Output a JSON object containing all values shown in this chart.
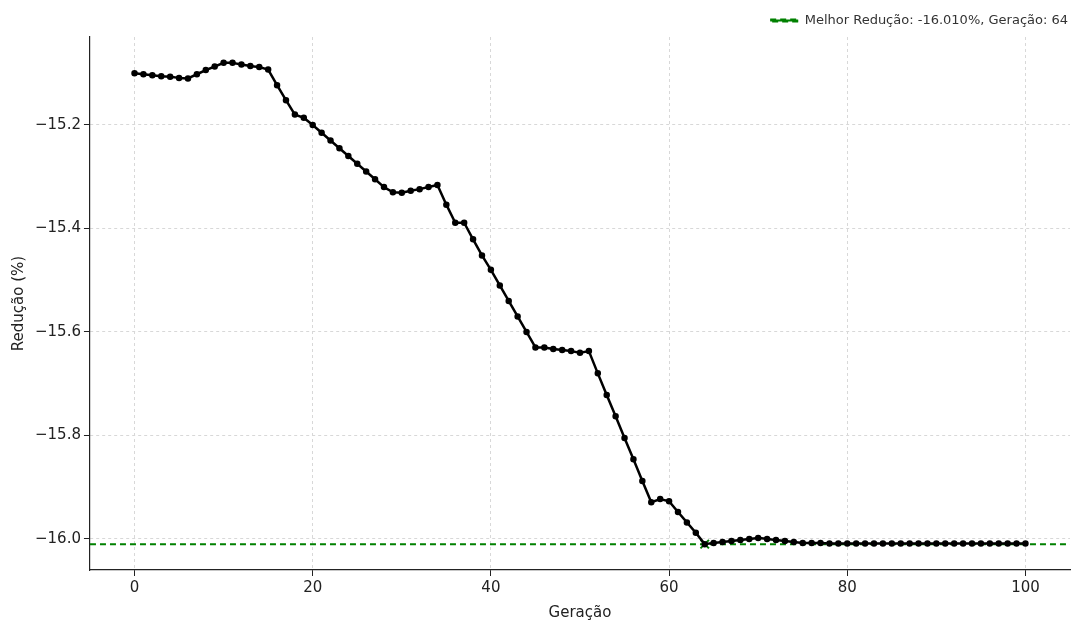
{
  "chart_data": {
    "type": "line",
    "xlabel": "Geração",
    "ylabel": "Redução (%)",
    "xlim": [
      -5,
      105
    ],
    "xticks": [
      0,
      20,
      40,
      60,
      80,
      100
    ],
    "ylim": [
      -16.06,
      -15.03
    ],
    "yticks": [
      {
        "value": -15.2,
        "label": "−15.2"
      },
      {
        "value": -15.4,
        "label": "−15.4"
      },
      {
        "value": -15.6,
        "label": "−15.6"
      },
      {
        "value": -15.8,
        "label": "−15.8"
      },
      {
        "value": -16.0,
        "label": "−16.0"
      }
    ],
    "grid": true,
    "legend": "top right",
    "marker": "circle",
    "line_style": "solid",
    "series": [
      {
        "color": "#000000",
        "x": [
          0,
          1,
          2,
          3,
          4,
          5,
          6,
          7,
          8,
          9,
          10,
          11,
          12,
          13,
          14,
          15,
          16,
          17,
          18,
          19,
          20,
          21,
          22,
          23,
          24,
          25,
          26,
          27,
          28,
          29,
          30,
          31,
          32,
          33,
          34,
          35,
          36,
          37,
          38,
          39,
          40,
          41,
          42,
          43,
          44,
          45,
          46,
          47,
          48,
          49,
          50,
          51,
          52,
          53,
          54,
          55,
          56,
          57,
          58,
          59,
          60,
          61,
          62,
          63,
          64,
          65,
          66,
          67,
          68,
          69,
          70,
          71,
          72,
          73,
          74,
          75,
          76,
          77,
          78,
          79,
          80,
          81,
          82,
          83,
          84,
          85,
          86,
          87,
          88,
          89,
          90,
          91,
          92,
          93,
          94,
          95,
          96,
          97,
          98,
          99,
          100
        ],
        "values": [
          -15.1,
          -15.102,
          -15.104,
          -15.106,
          -15.107,
          -15.109,
          -15.11,
          -15.102,
          -15.094,
          -15.087,
          -15.08,
          -15.08,
          -15.083,
          -15.086,
          -15.088,
          -15.093,
          -15.123,
          -15.152,
          -15.18,
          -15.186,
          -15.2,
          -15.215,
          -15.23,
          -15.245,
          -15.26,
          -15.275,
          -15.29,
          -15.305,
          -15.32,
          -15.33,
          -15.331,
          -15.327,
          -15.324,
          -15.32,
          -15.316,
          -15.354,
          -15.389,
          -15.389,
          -15.421,
          -15.452,
          -15.48,
          -15.51,
          -15.54,
          -15.57,
          -15.6,
          -15.63,
          -15.63,
          -15.633,
          -15.635,
          -15.637,
          -15.64,
          -15.637,
          -15.68,
          -15.722,
          -15.763,
          -15.805,
          -15.846,
          -15.888,
          -15.929,
          -15.923,
          -15.927,
          -15.948,
          -15.968,
          -15.988,
          -16.01,
          -16.008,
          -16.006,
          -16.004,
          -16.002,
          -16.0,
          -15.998,
          -16.0,
          -16.002,
          -16.004,
          -16.006,
          -16.008,
          -16.008,
          -16.008,
          -16.009,
          -16.009,
          -16.009,
          -16.009,
          -16.009,
          -16.009,
          -16.009,
          -16.009,
          -16.009,
          -16.009,
          -16.009,
          -16.009,
          -16.009,
          -16.009,
          -16.009,
          -16.009,
          -16.009,
          -16.009,
          -16.009,
          -16.009,
          -16.009,
          -16.009,
          -16.009
        ]
      },
      {
        "type": "scatter",
        "color": "#008000",
        "marker": "cross",
        "x": [
          64
        ],
        "values": [
          -16.01
        ]
      }
    ],
    "ref_lines": [
      {
        "axis": "y",
        "value": -16.01,
        "label": "Melhor Redução: -16.010%, Geração: 64",
        "color": "#008000",
        "line_style": "dashed"
      }
    ]
  }
}
